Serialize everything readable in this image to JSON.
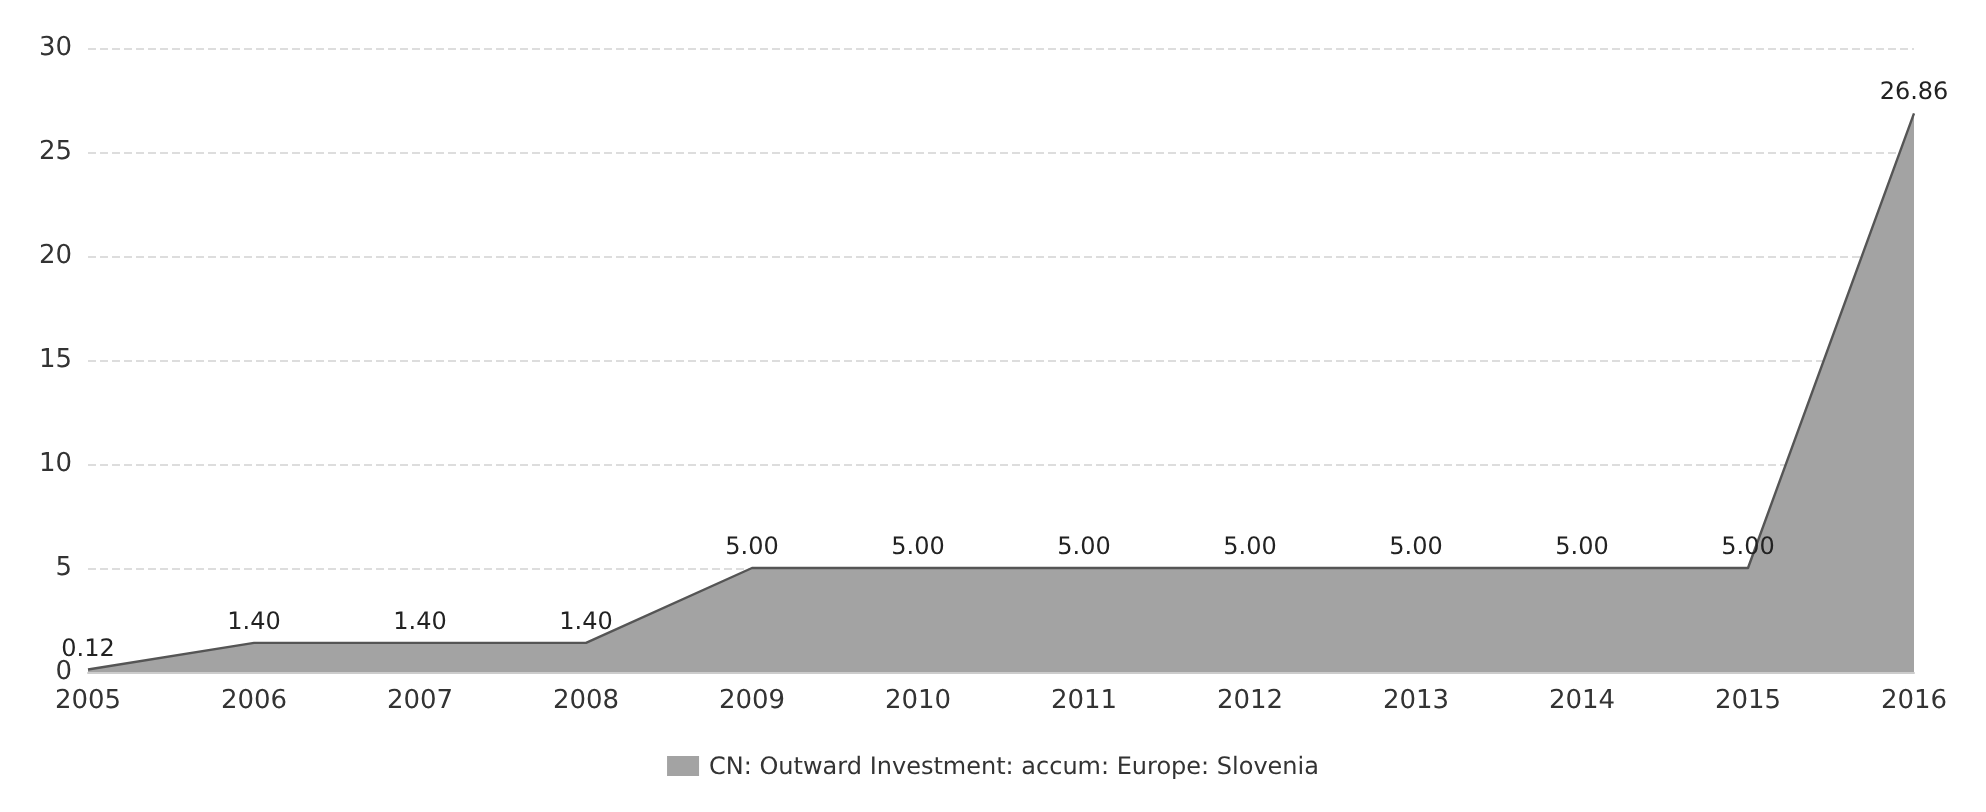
{
  "chart_data": {
    "type": "area",
    "categories": [
      "2005",
      "2006",
      "2007",
      "2008",
      "2009",
      "2010",
      "2011",
      "2012",
      "2013",
      "2014",
      "2015",
      "2016"
    ],
    "series": [
      {
        "name": "CN: Outward Investment: accum: Europe: Slovenia",
        "color": "#a3a3a3",
        "values": [
          0.12,
          1.4,
          1.4,
          1.4,
          5,
          5,
          5,
          5,
          5,
          5,
          5,
          26.86
        ],
        "value_labels": [
          "0.12",
          "1.40",
          "1.40",
          "1.40",
          "5.00",
          "5.00",
          "5.00",
          "5.00",
          "5.00",
          "5.00",
          "5.00",
          "26.86"
        ]
      }
    ],
    "ylim": [
      0,
      30
    ],
    "yticks": [
      0,
      5,
      10,
      15,
      20,
      25,
      30
    ],
    "grid": "y",
    "legend": "bottom",
    "marker": "none"
  }
}
